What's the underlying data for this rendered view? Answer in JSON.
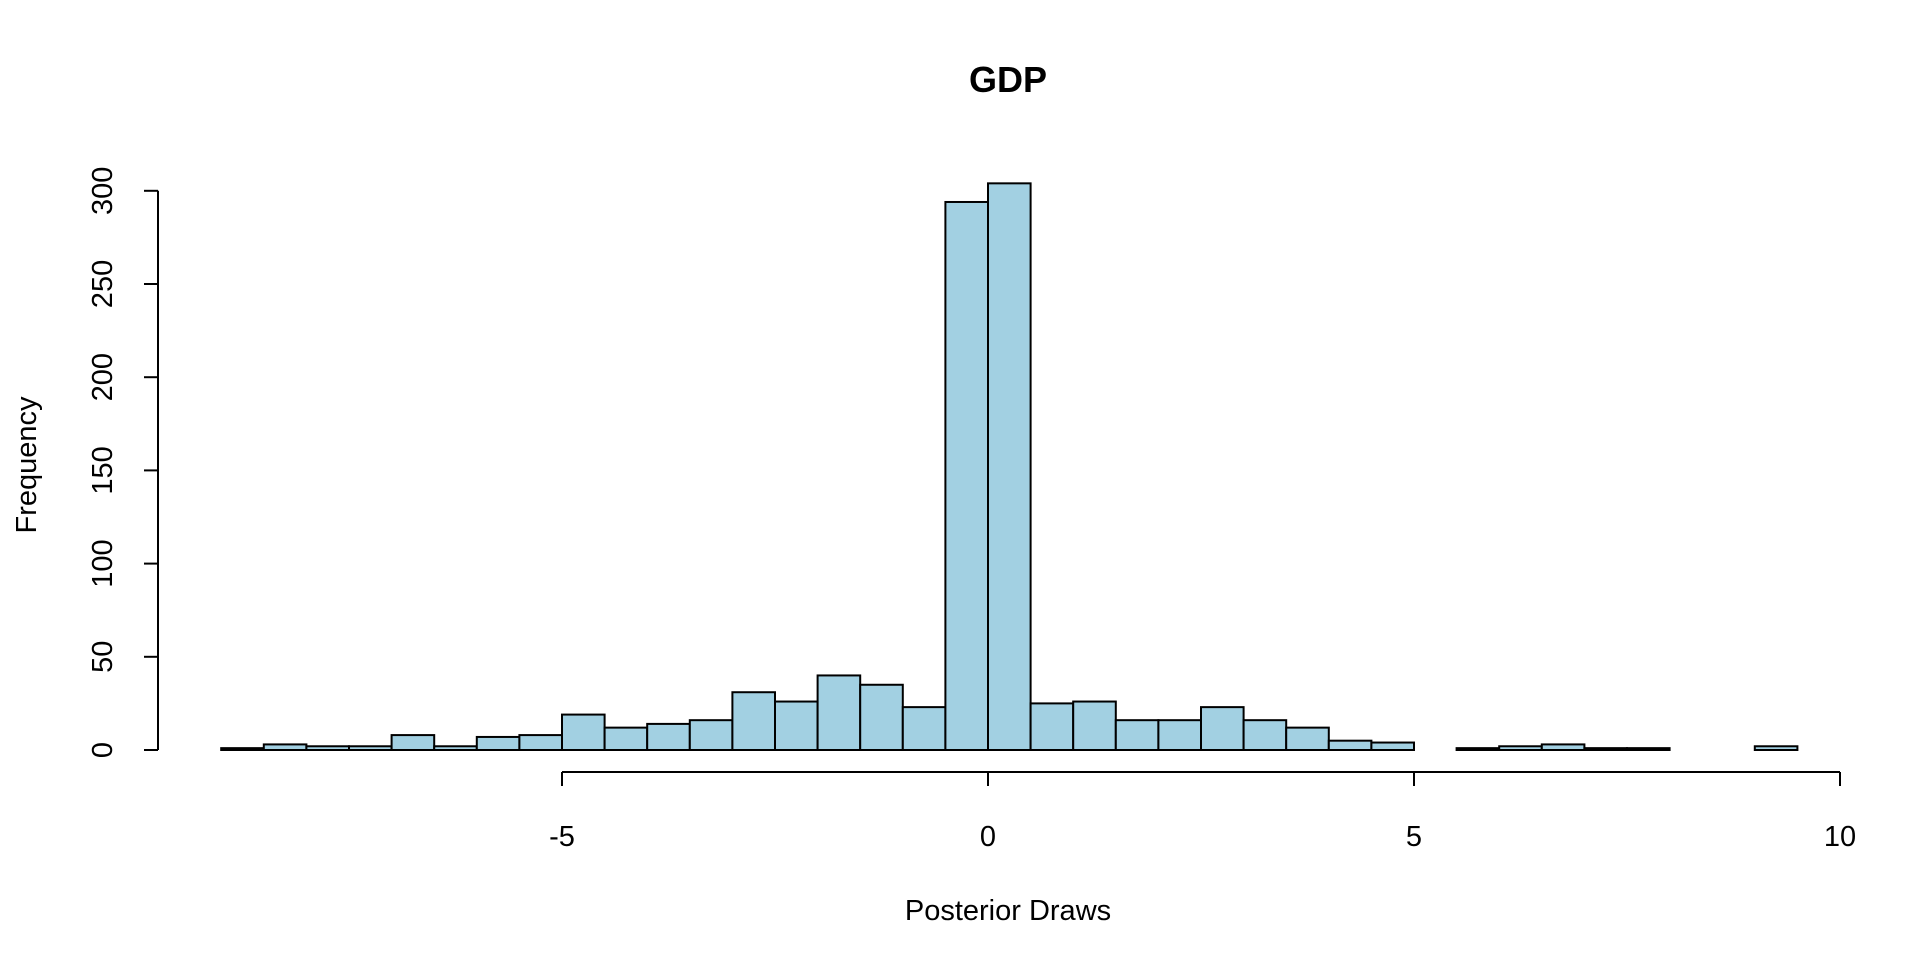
{
  "chart_data": {
    "type": "bar",
    "title": "GDP",
    "xlabel": "Posterior Draws",
    "ylabel": "Frequency",
    "bar_color": "#A2D0E2",
    "bin_width": 0.5,
    "xlim": [
      -9,
      10
    ],
    "ylim": [
      0,
      300
    ],
    "x_ticks": [
      -5,
      0,
      5,
      10
    ],
    "x_tick_labels": [
      "-5",
      "0",
      "5",
      "10"
    ],
    "y_ticks": [
      0,
      50,
      100,
      150,
      200,
      250,
      300
    ],
    "y_tick_labels": [
      "0",
      "50",
      "100",
      "150",
      "200",
      "250",
      "300"
    ],
    "bins": [
      {
        "x0": -9.0,
        "count": 1
      },
      {
        "x0": -8.5,
        "count": 3
      },
      {
        "x0": -8.0,
        "count": 2
      },
      {
        "x0": -7.5,
        "count": 2
      },
      {
        "x0": -7.0,
        "count": 8
      },
      {
        "x0": -6.5,
        "count": 2
      },
      {
        "x0": -6.0,
        "count": 7
      },
      {
        "x0": -5.5,
        "count": 8
      },
      {
        "x0": -5.0,
        "count": 19
      },
      {
        "x0": -4.5,
        "count": 12
      },
      {
        "x0": -4.0,
        "count": 14
      },
      {
        "x0": -3.5,
        "count": 16
      },
      {
        "x0": -3.0,
        "count": 31
      },
      {
        "x0": -2.5,
        "count": 26
      },
      {
        "x0": -2.0,
        "count": 40
      },
      {
        "x0": -1.5,
        "count": 35
      },
      {
        "x0": -1.0,
        "count": 23
      },
      {
        "x0": -0.5,
        "count": 294
      },
      {
        "x0": 0.0,
        "count": 304
      },
      {
        "x0": 0.5,
        "count": 25
      },
      {
        "x0": 1.0,
        "count": 26
      },
      {
        "x0": 1.5,
        "count": 16
      },
      {
        "x0": 2.0,
        "count": 16
      },
      {
        "x0": 2.5,
        "count": 23
      },
      {
        "x0": 3.0,
        "count": 16
      },
      {
        "x0": 3.5,
        "count": 12
      },
      {
        "x0": 4.0,
        "count": 5
      },
      {
        "x0": 4.5,
        "count": 4
      },
      {
        "x0": 5.0,
        "count": 0
      },
      {
        "x0": 5.5,
        "count": 1
      },
      {
        "x0": 6.0,
        "count": 2
      },
      {
        "x0": 6.5,
        "count": 3
      },
      {
        "x0": 7.0,
        "count": 1
      },
      {
        "x0": 7.5,
        "count": 1
      },
      {
        "x0": 8.0,
        "count": 0
      },
      {
        "x0": 8.5,
        "count": 0
      },
      {
        "x0": 9.0,
        "count": 2
      }
    ]
  }
}
